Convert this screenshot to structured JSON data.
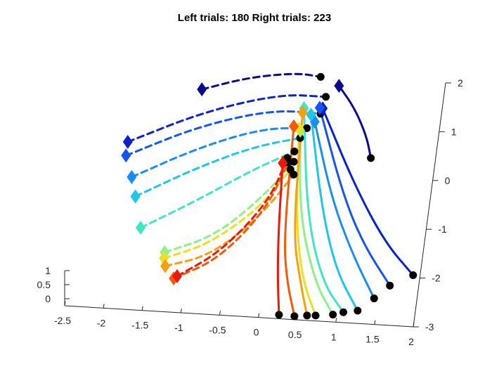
{
  "chart_data": {
    "type": "line",
    "projection": "3d",
    "title": "Left trials: 180 Right trials: 223",
    "xlabel": "",
    "ylabel": "",
    "zlabel": "",
    "grid": false,
    "xlim": [
      -2.5,
      2
    ],
    "ylim": [
      -3,
      2
    ],
    "zlim": [
      0,
      1
    ],
    "x_ticks": [
      "-2.5",
      "-2",
      "-1.5",
      "-1",
      "-0.5",
      "0",
      "0.5",
      "1",
      "1.5",
      "2"
    ],
    "y_ticks": [
      "2",
      "1",
      "0",
      "-1",
      "-2",
      "-3"
    ],
    "z_ticks": [
      "1",
      "0.5",
      "0"
    ],
    "colormap": "jet",
    "start_marker": "diamond",
    "end_marker": "black filled circle",
    "series": [
      {
        "group": "left",
        "style": "dashed",
        "color": "#0a0a8c",
        "points": [
          [
            -1.11,
            1.57
          ],
          [
            -0.53,
            1.87
          ],
          [
            0.08,
            2.02
          ],
          [
            0.39,
            1.97
          ]
        ]
      },
      {
        "group": "left",
        "style": "dashed",
        "color": "#0b22c8",
        "points": [
          [
            -1.97,
            0.41
          ],
          [
            -1.04,
            1.12
          ],
          [
            -0.09,
            1.57
          ],
          [
            0.49,
            1.57
          ]
        ]
      },
      {
        "group": "left",
        "style": "dashed",
        "color": "#1455f0",
        "points": [
          [
            -1.97,
            0.13
          ],
          [
            -1.08,
            0.82
          ],
          [
            -0.17,
            1.24
          ],
          [
            0.45,
            1.22
          ]
        ]
      },
      {
        "group": "left",
        "style": "dashed",
        "color": "#1a8ef0",
        "points": [
          [
            -1.86,
            -0.3
          ],
          [
            -1.04,
            0.39
          ],
          [
            -0.26,
            0.85
          ],
          [
            0.3,
            0.91
          ]
        ]
      },
      {
        "group": "left",
        "style": "dashed",
        "color": "#1fc6e6",
        "points": [
          [
            -1.78,
            -0.69
          ],
          [
            -1.04,
            -0.03
          ],
          [
            -0.34,
            0.47
          ],
          [
            0.23,
            0.7
          ]
        ]
      },
      {
        "group": "left",
        "style": "dashed",
        "color": "#40e6c0",
        "points": [
          [
            -1.66,
            -1.32
          ],
          [
            -0.99,
            -0.7
          ],
          [
            -0.33,
            -0.01
          ],
          [
            0.18,
            0.42
          ]
        ]
      },
      {
        "group": "left",
        "style": "dashed",
        "color": "#8ff08a",
        "points": [
          [
            -1.31,
            -1.79
          ],
          [
            -0.68,
            -1.38
          ],
          [
            -0.12,
            -0.49
          ],
          [
            0.19,
            0.21
          ]
        ]
      },
      {
        "group": "left",
        "style": "dashed",
        "color": "#e8e020",
        "points": [
          [
            -1.31,
            -1.91
          ],
          [
            -0.76,
            -1.57
          ],
          [
            -0.17,
            -0.77
          ],
          [
            0.16,
            0.05
          ]
        ]
      },
      {
        "group": "left",
        "style": "dashed",
        "color": "#f5a010",
        "points": [
          [
            -1.28,
            -2.07
          ],
          [
            -0.71,
            -1.79
          ],
          [
            -0.13,
            -0.91
          ],
          [
            0.21,
            -0.05
          ]
        ]
      },
      {
        "group": "left",
        "style": "dashed",
        "color": "#f25a0a",
        "points": [
          [
            -1.15,
            -2.31
          ],
          [
            -0.61,
            -1.86
          ],
          [
            -0.09,
            -0.81
          ],
          [
            0.12,
            0.19
          ]
        ]
      },
      {
        "group": "left",
        "style": "dashed",
        "color": "#e81a0a",
        "points": [
          [
            -1.11,
            -2.26
          ],
          [
            -0.58,
            -1.69
          ],
          [
            -0.06,
            -0.62
          ],
          [
            0.1,
            0.28
          ]
        ]
      },
      {
        "group": "right",
        "style": "solid",
        "color": "#0a0a8c",
        "points": [
          [
            0.64,
            1.81
          ],
          [
            0.88,
            1.37
          ],
          [
            1.08,
            0.81
          ],
          [
            1.17,
            0.38
          ]
        ]
      },
      {
        "group": "right",
        "style": "solid",
        "color": "#0b22c8",
        "points": [
          [
            0.47,
            1.33
          ],
          [
            1.0,
            -0.17
          ],
          [
            1.49,
            -1.31
          ],
          [
            1.91,
            -1.95
          ]
        ]
      },
      {
        "group": "right",
        "style": "solid",
        "color": "#1455f0",
        "points": [
          [
            0.43,
            1.34
          ],
          [
            0.87,
            -0.38
          ],
          [
            1.22,
            -1.38
          ],
          [
            1.63,
            -2.19
          ]
        ]
      },
      {
        "group": "right",
        "style": "solid",
        "color": "#1a8ef0",
        "points": [
          [
            0.39,
            1.05
          ],
          [
            0.74,
            -0.5
          ],
          [
            1.1,
            -1.6
          ],
          [
            1.45,
            -2.47
          ]
        ]
      },
      {
        "group": "right",
        "style": "solid",
        "color": "#1fc6e6",
        "points": [
          [
            0.33,
            1.19
          ],
          [
            0.63,
            -0.72
          ],
          [
            0.92,
            -1.96
          ],
          [
            1.26,
            -2.74
          ]
        ]
      },
      {
        "group": "right",
        "style": "solid",
        "color": "#40e6c0",
        "points": [
          [
            0.23,
            1.31
          ],
          [
            0.45,
            -0.86
          ],
          [
            0.76,
            -2.2
          ],
          [
            1.08,
            -2.79
          ]
        ]
      },
      {
        "group": "right",
        "style": "solid",
        "color": "#8ff08a",
        "points": [
          [
            0.22,
            0.85
          ],
          [
            0.36,
            -0.9
          ],
          [
            0.67,
            -2.23
          ],
          [
            0.95,
            -2.85
          ]
        ]
      },
      {
        "group": "right",
        "style": "solid",
        "color": "#e8e020",
        "points": [
          [
            0.2,
            0.89
          ],
          [
            0.33,
            -1.1
          ],
          [
            0.51,
            -2.21
          ],
          [
            0.73,
            -2.89
          ]
        ]
      },
      {
        "group": "right",
        "style": "solid",
        "color": "#f5a010",
        "points": [
          [
            0.22,
            1.22
          ],
          [
            0.3,
            -1.23
          ],
          [
            0.48,
            -2.24
          ],
          [
            0.62,
            -2.9
          ]
        ]
      },
      {
        "group": "right",
        "style": "solid",
        "color": "#f25a0a",
        "points": [
          [
            0.13,
            0.93
          ],
          [
            0.19,
            -1.31
          ],
          [
            0.3,
            -2.21
          ],
          [
            0.46,
            -2.93
          ]
        ]
      },
      {
        "group": "right",
        "style": "solid",
        "color": "#e81a0a",
        "points": [
          [
            0.05,
            0.17
          ],
          [
            0.11,
            -1.2
          ],
          [
            0.18,
            -2.17
          ],
          [
            0.26,
            -2.92
          ]
        ]
      }
    ]
  }
}
